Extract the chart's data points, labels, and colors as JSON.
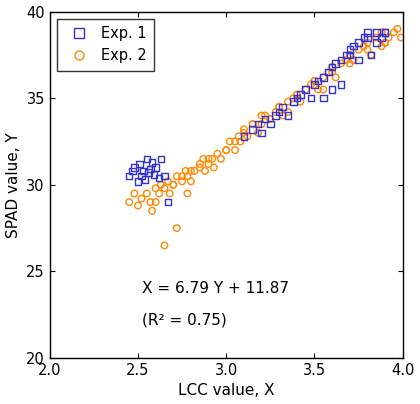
{
  "xlabel": "LCC value, X",
  "ylabel": "SPAD value, Y",
  "xlim": [
    2.0,
    4.0
  ],
  "ylim": [
    20,
    40
  ],
  "xticks": [
    2.0,
    2.5,
    3.0,
    3.5,
    4.0
  ],
  "yticks": [
    20,
    25,
    30,
    35,
    40
  ],
  "equation": "X = 6.79 Y + 11.87",
  "r2": "(R² = 0.75)",
  "line_slope": 6.79,
  "line_intercept": 11.87,
  "exp1_color": "#3333CC",
  "exp2_color": "#FF8800",
  "legend_exp1": "Exp. 1",
  "legend_exp2": "Exp. 2",
  "exp1_x": [
    2.45,
    2.47,
    2.48,
    2.5,
    2.51,
    2.52,
    2.53,
    2.54,
    2.55,
    2.56,
    2.57,
    2.58,
    2.59,
    2.6,
    2.62,
    2.63,
    2.65,
    2.67,
    3.1,
    3.15,
    3.18,
    3.2,
    3.22,
    3.25,
    3.28,
    3.3,
    3.32,
    3.35,
    3.38,
    3.4,
    3.42,
    3.45,
    3.48,
    3.5,
    3.52,
    3.55,
    3.58,
    3.6,
    3.62,
    3.65,
    3.68,
    3.7,
    3.72,
    3.75,
    3.78,
    3.8,
    3.82,
    3.85,
    3.88,
    3.9,
    3.55,
    3.6,
    3.7,
    3.8,
    3.9,
    3.75,
    3.85,
    3.65
  ],
  "exp1_y": [
    30.5,
    30.8,
    31.0,
    30.2,
    31.2,
    30.5,
    30.8,
    30.3,
    31.5,
    30.7,
    30.9,
    31.3,
    30.6,
    31.0,
    30.4,
    31.5,
    30.5,
    29.0,
    32.8,
    33.2,
    33.5,
    33.0,
    33.8,
    33.5,
    34.0,
    34.2,
    34.5,
    34.0,
    34.8,
    35.0,
    35.2,
    35.5,
    35.0,
    35.8,
    36.0,
    36.2,
    36.5,
    36.8,
    37.0,
    37.2,
    37.5,
    37.8,
    38.0,
    38.2,
    38.5,
    38.8,
    37.5,
    38.2,
    38.5,
    38.8,
    35.0,
    35.5,
    37.5,
    38.5,
    38.8,
    37.2,
    38.8,
    35.8
  ],
  "exp2_x": [
    2.45,
    2.48,
    2.5,
    2.52,
    2.55,
    2.57,
    2.6,
    2.62,
    2.63,
    2.65,
    2.67,
    2.68,
    2.7,
    2.72,
    2.75,
    2.77,
    2.78,
    2.8,
    2.82,
    2.85,
    2.87,
    2.88,
    2.9,
    2.92,
    2.93,
    2.95,
    2.97,
    3.0,
    3.02,
    3.05,
    3.07,
    3.08,
    3.1,
    3.12,
    3.15,
    3.18,
    3.2,
    3.22,
    3.25,
    3.28,
    3.3,
    3.32,
    3.35,
    3.38,
    3.4,
    3.42,
    3.45,
    3.48,
    3.5,
    3.52,
    3.55,
    3.58,
    3.6,
    3.62,
    3.65,
    3.68,
    3.7,
    3.72,
    3.75,
    3.78,
    3.8,
    3.82,
    3.85,
    3.88,
    3.9,
    3.92,
    3.95,
    3.97,
    3.99,
    2.75,
    2.8,
    2.9,
    3.05,
    3.1,
    3.2,
    3.3,
    3.4,
    3.5,
    3.6,
    3.7,
    3.8,
    3.9,
    2.65,
    2.72,
    2.58,
    2.78,
    3.0,
    3.15,
    3.35,
    3.55,
    3.72,
    3.88,
    2.6,
    2.7,
    2.85,
    3.25
  ],
  "exp2_y": [
    29.0,
    29.5,
    28.8,
    29.2,
    29.5,
    29.0,
    29.8,
    29.5,
    30.0,
    29.8,
    30.2,
    29.5,
    30.0,
    30.5,
    30.2,
    30.8,
    30.5,
    30.2,
    30.8,
    31.0,
    31.5,
    30.8,
    31.2,
    31.5,
    31.0,
    31.8,
    31.5,
    32.0,
    32.5,
    32.0,
    32.8,
    32.5,
    33.0,
    32.8,
    33.5,
    33.0,
    33.5,
    34.0,
    33.8,
    34.2,
    34.5,
    34.0,
    34.8,
    35.0,
    35.2,
    34.8,
    35.5,
    35.8,
    36.0,
    35.5,
    36.2,
    36.5,
    36.8,
    36.2,
    37.0,
    37.2,
    37.5,
    37.2,
    37.8,
    38.0,
    38.2,
    37.5,
    38.5,
    38.8,
    38.2,
    38.5,
    38.8,
    39.0,
    38.5,
    30.5,
    30.8,
    31.5,
    32.5,
    33.2,
    34.0,
    34.5,
    35.2,
    36.0,
    36.5,
    37.0,
    37.8,
    38.2,
    26.5,
    27.5,
    28.5,
    29.5,
    32.0,
    33.5,
    34.2,
    35.5,
    37.2,
    38.0,
    29.0,
    30.0,
    31.2,
    33.8
  ]
}
